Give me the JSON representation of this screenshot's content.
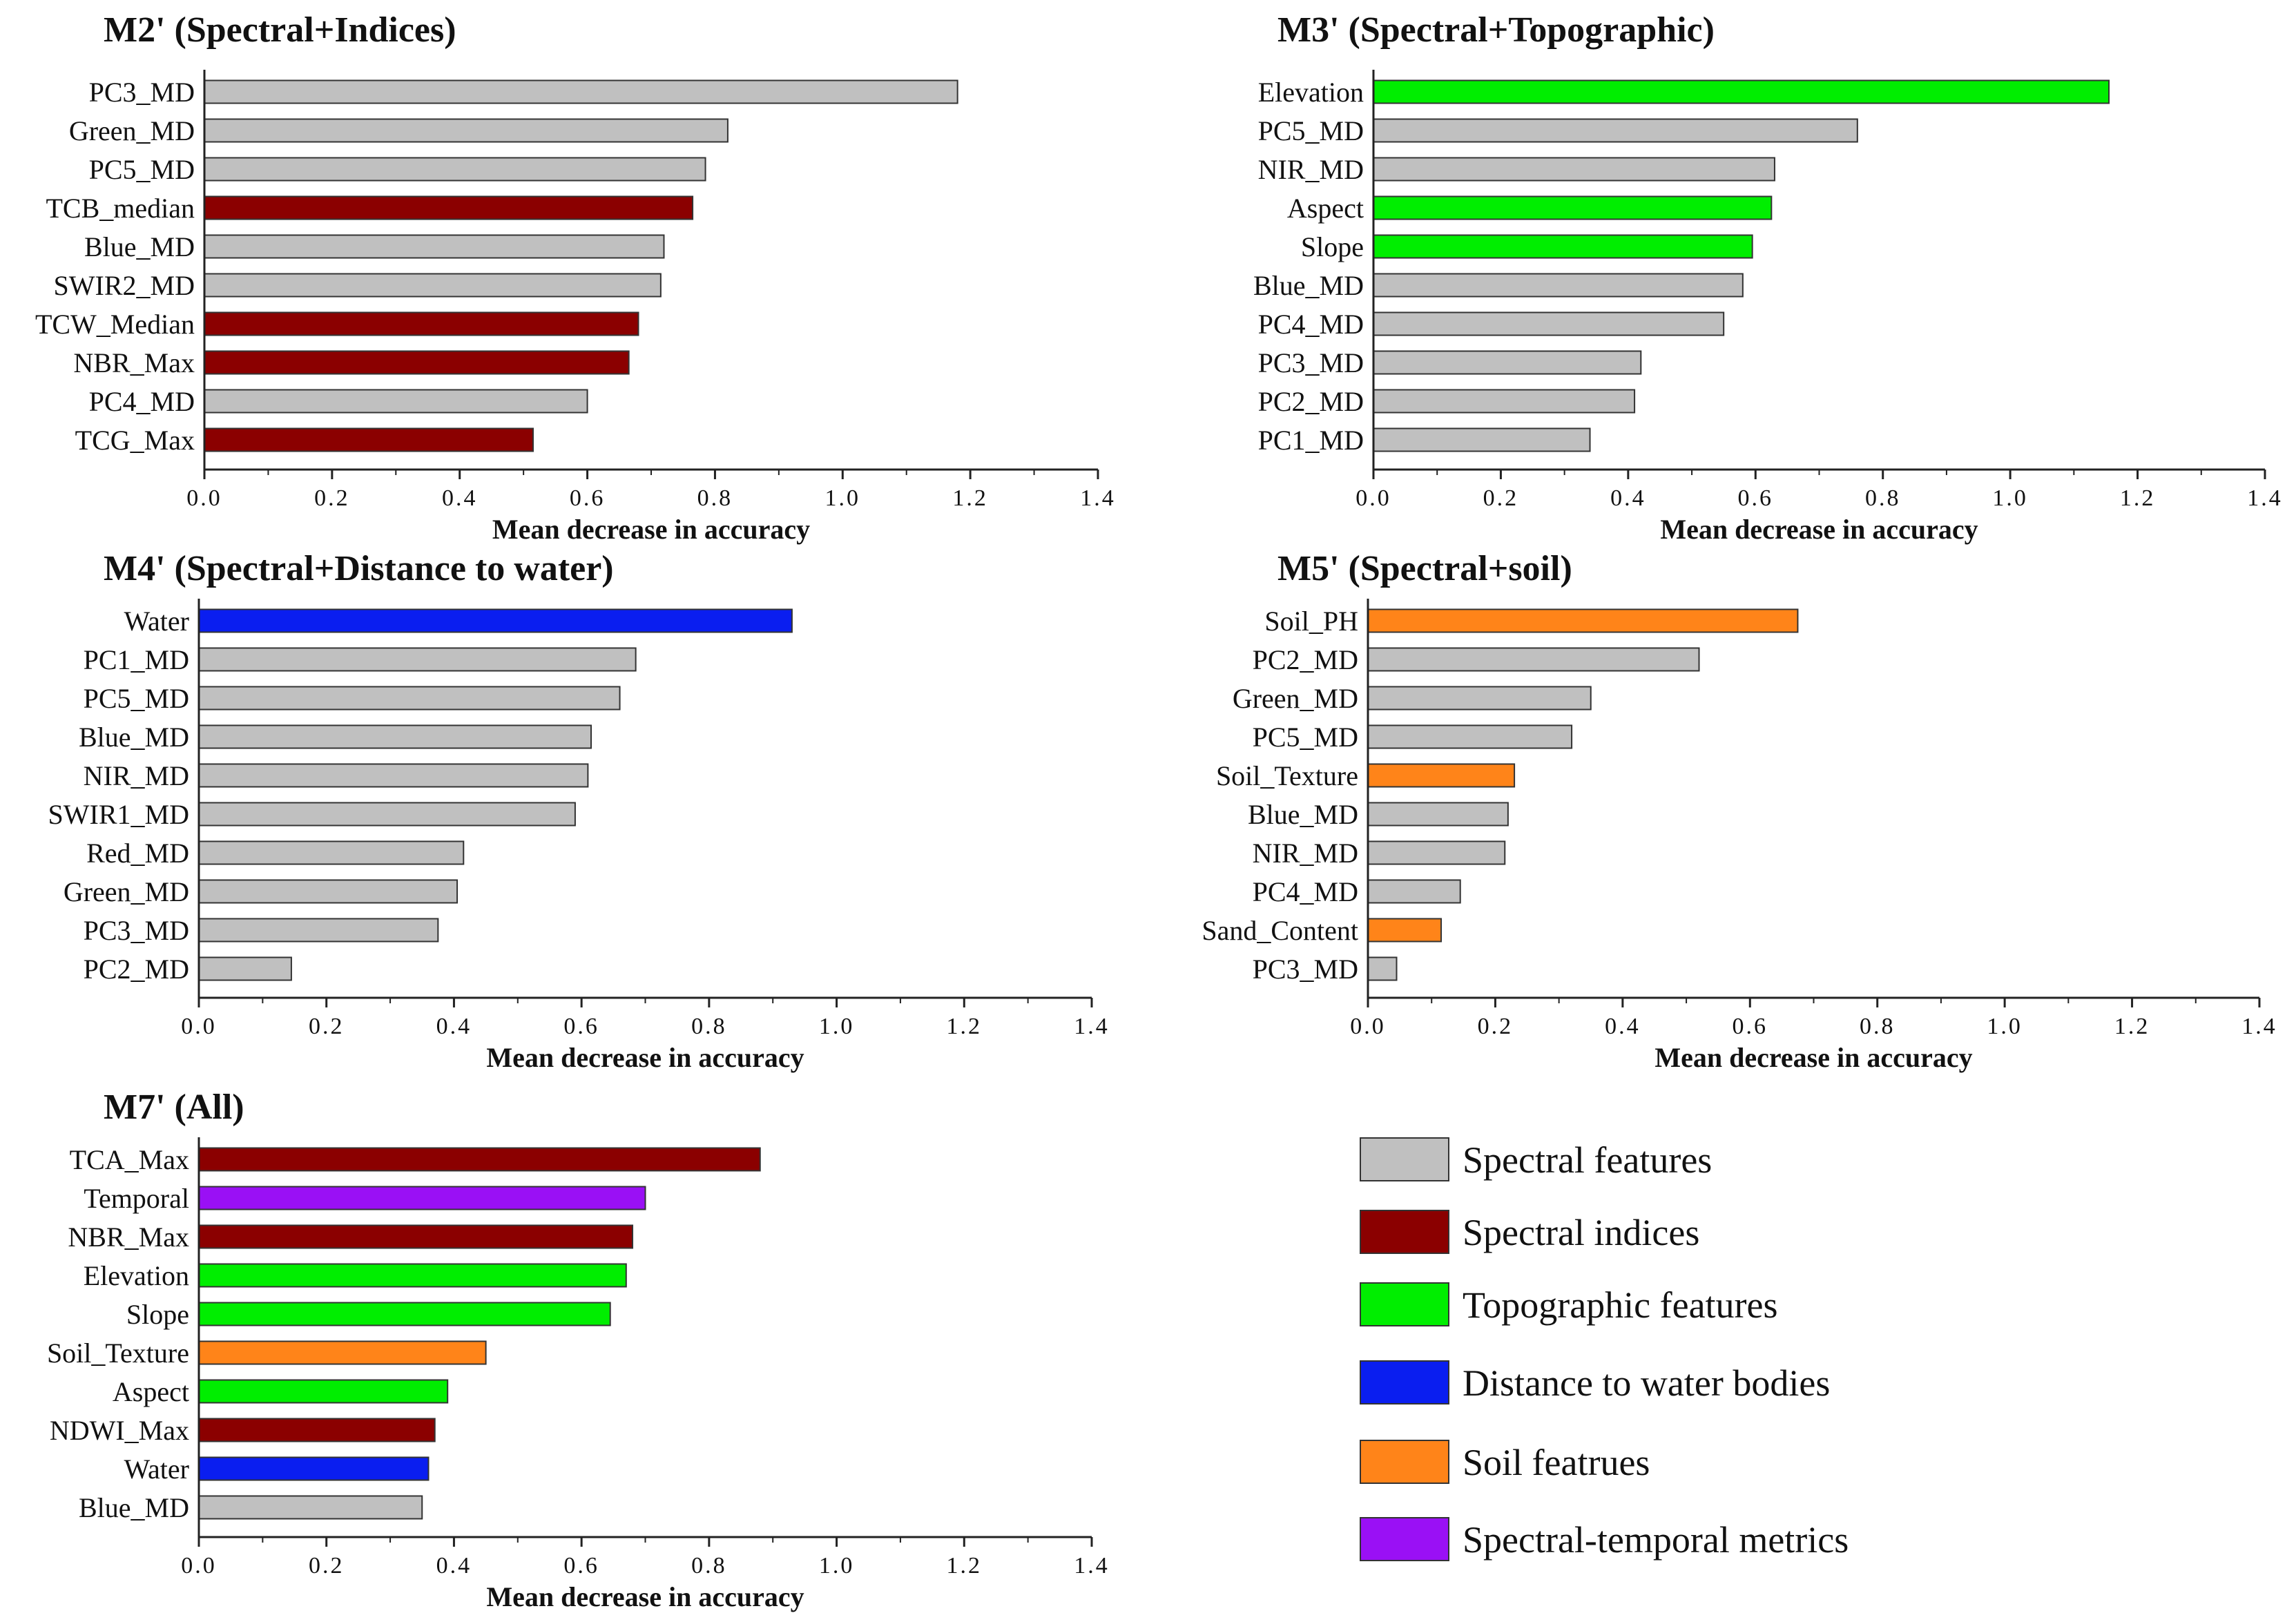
{
  "colors": {
    "spectral": "#c0c0c0",
    "indices": "#8b0000",
    "topographic": "#00ee00",
    "water": "#0a1ef0",
    "soil": "#ff8419",
    "temporal": "#9a10f5",
    "stroke": "#333333",
    "axis": "#222222"
  },
  "chart_data": [
    {
      "type": "bar",
      "orientation": "horizontal",
      "title": "M2' (Spectral+Indices)",
      "xlabel": "Mean decrease in accuracy",
      "xlim": [
        0,
        1.4
      ],
      "xticks": [
        "0.0",
        "0.2",
        "0.4",
        "0.6",
        "0.8",
        "1.0",
        "1.2",
        "1.4"
      ],
      "categories": [
        "PC3_MD",
        "Green_MD",
        "PC5_MD",
        "TCB_median",
        "Blue_MD",
        "SWIR2_MD",
        "TCW_Median",
        "NBR_Max",
        "PC4_MD",
        "TCG_Max"
      ],
      "values": [
        1.18,
        0.82,
        0.785,
        0.765,
        0.72,
        0.715,
        0.68,
        0.665,
        0.6,
        0.515
      ],
      "groups": [
        "spectral",
        "spectral",
        "spectral",
        "indices",
        "spectral",
        "spectral",
        "indices",
        "indices",
        "spectral",
        "indices"
      ]
    },
    {
      "type": "bar",
      "orientation": "horizontal",
      "title": "M3' (Spectral+Topographic)",
      "xlabel": "Mean decrease in accuracy",
      "xlim": [
        0,
        1.4
      ],
      "xticks": [
        "0.0",
        "0.2",
        "0.4",
        "0.6",
        "0.8",
        "1.0",
        "1.2",
        "1.4"
      ],
      "categories": [
        "Elevation",
        "PC5_MD",
        "NIR_MD",
        "Aspect",
        "Slope",
        "Blue_MD",
        "PC4_MD",
        "PC3_MD",
        "PC2_MD",
        "PC1_MD"
      ],
      "values": [
        1.155,
        0.76,
        0.63,
        0.625,
        0.595,
        0.58,
        0.55,
        0.42,
        0.41,
        0.34
      ],
      "groups": [
        "topographic",
        "spectral",
        "spectral",
        "topographic",
        "topographic",
        "spectral",
        "spectral",
        "spectral",
        "spectral",
        "spectral"
      ]
    },
    {
      "type": "bar",
      "orientation": "horizontal",
      "title": "M4' (Spectral+Distance to water)",
      "xlabel": "Mean decrease in accuracy",
      "xlim": [
        0,
        1.4
      ],
      "xticks": [
        "0.0",
        "0.2",
        "0.4",
        "0.6",
        "0.8",
        "1.0",
        "1.2",
        "1.4"
      ],
      "categories": [
        "Water",
        "PC1_MD",
        "PC5_MD",
        "Blue_MD",
        "NIR_MD",
        "SWIR1_MD",
        "Red_MD",
        "Green_MD",
        "PC3_MD",
        "PC2_MD"
      ],
      "values": [
        0.93,
        0.685,
        0.66,
        0.615,
        0.61,
        0.59,
        0.415,
        0.405,
        0.375,
        0.145
      ],
      "groups": [
        "water",
        "spectral",
        "spectral",
        "spectral",
        "spectral",
        "spectral",
        "spectral",
        "spectral",
        "spectral",
        "spectral"
      ]
    },
    {
      "type": "bar",
      "orientation": "horizontal",
      "title": "M5' (Spectral+soil)",
      "xlabel": "Mean decrease in accuracy",
      "xlim": [
        0,
        1.4
      ],
      "xticks": [
        "0.0",
        "0.2",
        "0.4",
        "0.6",
        "0.8",
        "1.0",
        "1.2",
        "1.4"
      ],
      "categories": [
        "Soil_PH",
        "PC2_MD",
        "Green_MD",
        "PC5_MD",
        "Soil_Texture",
        "Blue_MD",
        "NIR_MD",
        "PC4_MD",
        "Sand_Content",
        "PC3_MD"
      ],
      "values": [
        0.675,
        0.52,
        0.35,
        0.32,
        0.23,
        0.22,
        0.215,
        0.145,
        0.115,
        0.045
      ],
      "groups": [
        "soil",
        "spectral",
        "spectral",
        "spectral",
        "soil",
        "spectral",
        "spectral",
        "spectral",
        "soil",
        "spectral"
      ]
    },
    {
      "type": "bar",
      "orientation": "horizontal",
      "title": "M7' (All)",
      "xlabel": "Mean decrease in accuracy",
      "xlim": [
        0,
        1.4
      ],
      "xticks": [
        "0.0",
        "0.2",
        "0.4",
        "0.6",
        "0.8",
        "1.0",
        "1.2",
        "1.4"
      ],
      "categories": [
        "TCA_Max",
        "Temporal",
        "NBR_Max",
        "Elevation",
        "Slope",
        "Soil_Texture",
        "Aspect",
        "NDWI_Max",
        "Water",
        "Blue_MD"
      ],
      "values": [
        0.88,
        0.7,
        0.68,
        0.67,
        0.645,
        0.45,
        0.39,
        0.37,
        0.36,
        0.35
      ],
      "groups": [
        "indices",
        "temporal",
        "indices",
        "topographic",
        "topographic",
        "soil",
        "topographic",
        "indices",
        "water",
        "spectral"
      ]
    }
  ],
  "legend": [
    {
      "key": "spectral",
      "label": "Spectral features"
    },
    {
      "key": "indices",
      "label": "Spectral indices"
    },
    {
      "key": "topographic",
      "label": "Topographic features"
    },
    {
      "key": "water",
      "label": "Distance to water bodies"
    },
    {
      "key": "soil",
      "label": "Soil featrues"
    },
    {
      "key": "temporal",
      "label": "Spectral-temporal metrics"
    }
  ]
}
